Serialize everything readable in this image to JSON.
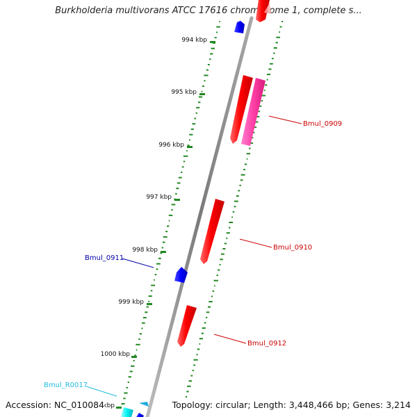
{
  "title": "Burkholderia multivorans ATCC 17616 chromosome 1, complete s...",
  "footer": {
    "accession": "Accession: NC_010084",
    "topology": "Topology: circular; Length: 3,448,466 bp; Genes: 3,214"
  },
  "ruler": {
    "unit_suffix": " kbp",
    "ticks": [
      "994 kbp",
      "995 kbp",
      "996 kbp",
      "997 kbp",
      "998 kbp",
      "999 kbp",
      "1000 kbp",
      "kbp"
    ]
  },
  "features": [
    {
      "name": "Bmul_0909",
      "color": "#cc0000"
    },
    {
      "name": "Bmul_0910",
      "color": "#cc0000"
    },
    {
      "name": "Bmul_0911",
      "color": "#0000aa"
    },
    {
      "name": "Bmul_0912",
      "color": "#cc0000"
    },
    {
      "name": "Bmul_R0017",
      "color": "#22bbdd"
    }
  ],
  "colors": {
    "backbone": "#8a8a8a",
    "forward_gene": "#ee0000",
    "forward_gene_alt": "#ee2299",
    "reverse_gene": "#0000ee",
    "rna": "#00dddd",
    "gc_ticks": "#228822"
  }
}
